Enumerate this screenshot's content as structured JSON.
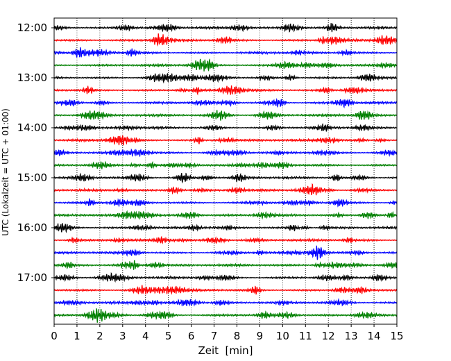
{
  "chart_data": {
    "type": "line",
    "title": "",
    "xlabel": "Zeit  [min]",
    "ylabel": "UTC (Lokalzeit = UTC + 01:00)",
    "xlim": [
      0,
      15
    ],
    "x_ticks": [
      "0",
      "1",
      "2",
      "3",
      "4",
      "5",
      "6",
      "7",
      "8",
      "9",
      "10",
      "11",
      "12",
      "13",
      "14",
      "15"
    ],
    "y_ticks": [
      "12:00",
      "13:00",
      "14:00",
      "15:00",
      "16:00",
      "17:00"
    ],
    "rows_per_hour": 4,
    "row_count": 24,
    "row_interval_min": 15,
    "first_row": "12:00",
    "row_colors": [
      "#000000",
      "#ff0000",
      "#0000ff",
      "#008000"
    ],
    "grid": {
      "x": true,
      "y": false,
      "style": "dotted"
    },
    "legend": "none",
    "trace_note": "seismogram helicorder traces, one 15-minute trace per row; small-amplitude oscillation"
  }
}
